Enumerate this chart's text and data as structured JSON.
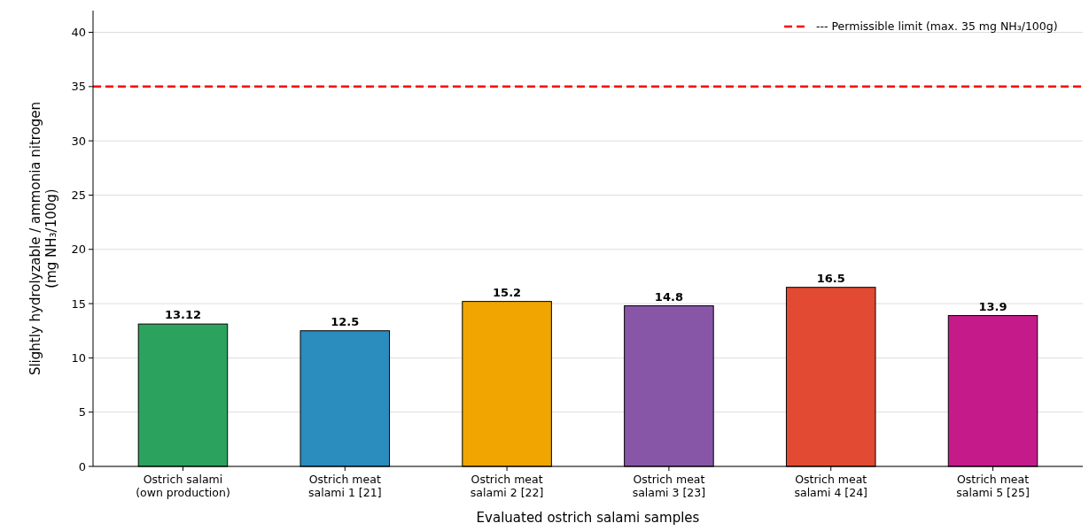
{
  "chart_data": {
    "type": "bar",
    "xlabel": "Evaluated ostrich salami samples",
    "ylabel": "Slightly hydrolyzable / ammonia nitrogen\n(mg NH₃/100g)",
    "categories": [
      "Ostrich salami\n(own production)",
      "Ostrich meat\nsalami 1 [21]",
      "Ostrich meat\nsalami 2 [22]",
      "Ostrich meat\nsalami 3 [23]",
      "Ostrich meat\nsalami 4 [24]",
      "Ostrich meat\nsalami 5 [25]"
    ],
    "values": [
      13.12,
      12.5,
      15.2,
      14.8,
      16.5,
      13.9
    ],
    "colors": [
      "#2ca25f",
      "#2b8cbe",
      "#f0a500",
      "#8856a7",
      "#e34a33",
      "#c51b8a"
    ],
    "ylim": [
      0,
      42
    ],
    "yticks": [
      0,
      5,
      10,
      15,
      20,
      25,
      30,
      35,
      40
    ],
    "grid": "y",
    "data_labels": true,
    "ref_lines": [
      {
        "axis": "y",
        "value": 35,
        "label": "--- Permissible limit (max. 35 mg NH₃/100g)",
        "color": "#ff0000",
        "line_style": "dashed"
      }
    ],
    "legend": "top right"
  }
}
